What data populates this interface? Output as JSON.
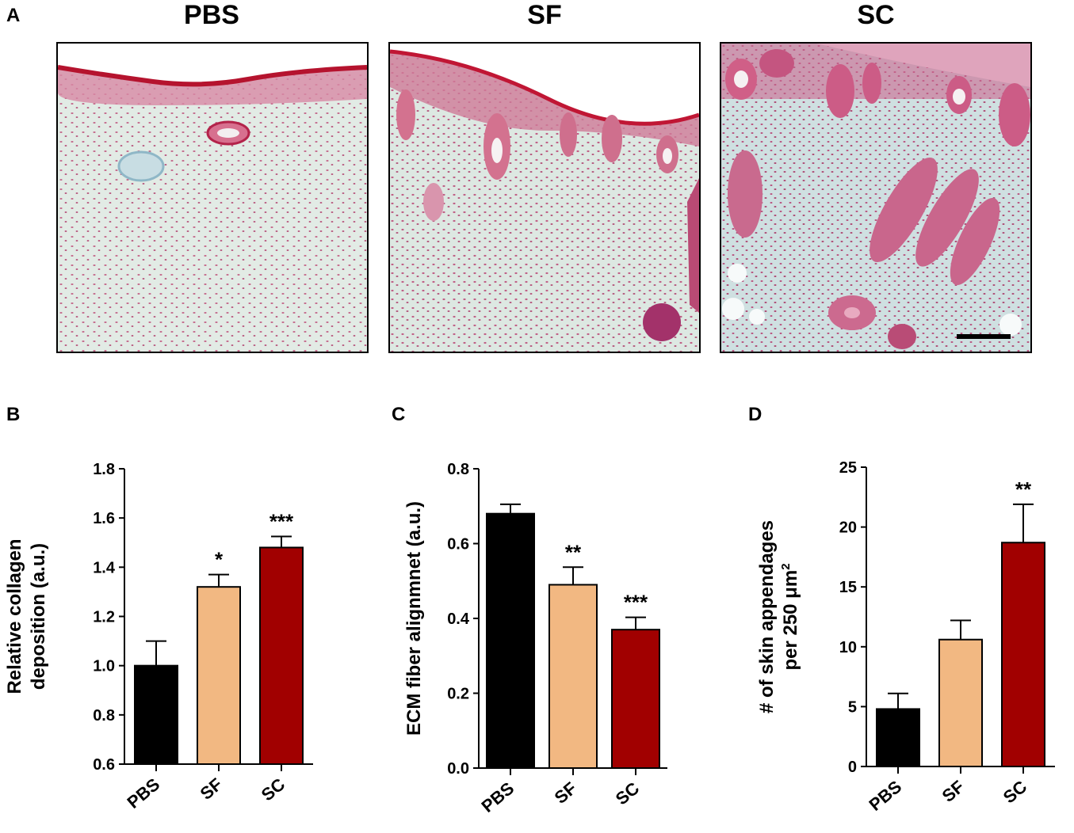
{
  "figure": {
    "panels": {
      "a": "A",
      "b": "B",
      "c": "C",
      "d": "D"
    },
    "micrographs": [
      {
        "title": "PBS"
      },
      {
        "title": "SF"
      },
      {
        "title": "SC",
        "scale_bar": true
      }
    ],
    "colors": {
      "PBS": "#000000",
      "SF": "#f2b882",
      "SC": "#a10000",
      "tissue_bg": "#dfe8e2",
      "stain_red": "#c8234a",
      "stain_blue": "#8fb7c7"
    }
  },
  "chart_data": [
    {
      "type": "bar",
      "panel": "B",
      "categories": [
        "PBS",
        "SF",
        "SC"
      ],
      "values": [
        1.0,
        1.32,
        1.48
      ],
      "errors": [
        0.1,
        0.05,
        0.045
      ],
      "significance": [
        "",
        "*",
        "***"
      ],
      "ylabel": "Relative collagen deposition (a.u.)",
      "ylim": [
        0.6,
        1.8
      ],
      "yticks": [
        0.6,
        0.8,
        1.0,
        1.2,
        1.4,
        1.6,
        1.8
      ],
      "ytick_labels": [
        "0.6",
        "0.8",
        "1.0",
        "1.2",
        "1.4",
        "1.6",
        "1.8"
      ],
      "colors": [
        "#000000",
        "#f2b882",
        "#a10000"
      ]
    },
    {
      "type": "bar",
      "panel": "C",
      "categories": [
        "PBS",
        "SF",
        "SC"
      ],
      "values": [
        0.68,
        0.49,
        0.37
      ],
      "errors": [
        0.025,
        0.047,
        0.033
      ],
      "significance": [
        "",
        "**",
        "***"
      ],
      "ylabel": "ECM fiber alignmnet (a.u.)",
      "ylim": [
        0.0,
        0.8
      ],
      "yticks": [
        0.0,
        0.2,
        0.4,
        0.6,
        0.8
      ],
      "ytick_labels": [
        "0.0",
        "0.2",
        "0.4",
        "0.6",
        "0.8"
      ],
      "colors": [
        "#000000",
        "#f2b882",
        "#a10000"
      ]
    },
    {
      "type": "bar",
      "panel": "D",
      "categories": [
        "PBS",
        "SF",
        "SC"
      ],
      "values": [
        4.8,
        10.6,
        18.7
      ],
      "errors": [
        1.3,
        1.6,
        3.2
      ],
      "significance": [
        "",
        "",
        "**"
      ],
      "ylabel_line1": "# of skin appendages",
      "ylabel_line2": "per 250 μm",
      "ylabel_sup": "2",
      "ylim": [
        0,
        25
      ],
      "yticks": [
        0,
        5,
        10,
        15,
        20,
        25
      ],
      "ytick_labels": [
        "0",
        "5",
        "10",
        "15",
        "20",
        "25"
      ],
      "colors": [
        "#000000",
        "#f2b882",
        "#a10000"
      ]
    }
  ]
}
